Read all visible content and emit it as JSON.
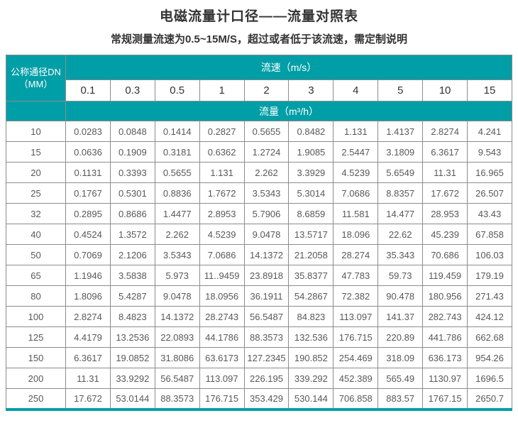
{
  "header": {
    "title": "电磁流量计口径——流量对照表",
    "subtitle": "常规测量流速为0.5~15M/S，超过或者低于该流速，需定制说明"
  },
  "table": {
    "accent_color": "#009ea6",
    "corner_label_line1": "公称通径DN",
    "corner_label_line2": "（MM）",
    "velocity_header": "流速（m/s）",
    "flow_header": "流量（m³/h）",
    "speed_columns": [
      "0.1",
      "0.3",
      "0.5",
      "1",
      "2",
      "3",
      "4",
      "5",
      "10",
      "15"
    ],
    "rows": [
      {
        "dn": "10",
        "values": [
          "0.0283",
          "0.0848",
          "0.1414",
          "0.2827",
          "0.5655",
          "0.8482",
          "1.131",
          "1.4137",
          "2.8274",
          "4.241"
        ]
      },
      {
        "dn": "15",
        "values": [
          "0.0636",
          "0.1909",
          "0.3181",
          "0.6362",
          "1.2724",
          "1.9085",
          "2.5447",
          "3.1809",
          "6.3617",
          "9.543"
        ]
      },
      {
        "dn": "20",
        "values": [
          "0.1131",
          "0.3393",
          "0.5655",
          "1.131",
          "2.262",
          "3.3929",
          "4.5239",
          "5.6549",
          "11.31",
          "16.965"
        ]
      },
      {
        "dn": "25",
        "values": [
          "0.1767",
          "0.5301",
          "0.8836",
          "1.7672",
          "3.5343",
          "5.3014",
          "7.0686",
          "8.8357",
          "17.672",
          "26.507"
        ]
      },
      {
        "dn": "32",
        "values": [
          "0.2895",
          "0.8686",
          "1.4477",
          "2.8953",
          "5.7906",
          "8.6859",
          "11.581",
          "14.477",
          "28.953",
          "43.43"
        ]
      },
      {
        "dn": "40",
        "values": [
          "0.4524",
          "1.3572",
          "2.262",
          "4.5239",
          "9.0478",
          "13.5717",
          "18.096",
          "22.62",
          "45.239",
          "67.858"
        ]
      },
      {
        "dn": "50",
        "values": [
          "0.7069",
          "2.1206",
          "3.5343",
          "7.0686",
          "14.1372",
          "21.2058",
          "28.274",
          "35.343",
          "70.686",
          "106.03"
        ]
      },
      {
        "dn": "65",
        "values": [
          "1.1946",
          "3.5838",
          "5.973",
          "11..9459",
          "23.8918",
          "35.8377",
          "47.783",
          "59.73",
          "119.459",
          "179.19"
        ]
      },
      {
        "dn": "80",
        "values": [
          "1.8096",
          "5.4287",
          "9.0478",
          "18.0956",
          "36.1911",
          "54.2867",
          "72.382",
          "90.478",
          "180.956",
          "271.43"
        ]
      },
      {
        "dn": "100",
        "values": [
          "2.8274",
          "8.4823",
          "14.1372",
          "28.2743",
          "56.5487",
          "84.823",
          "113.097",
          "141.37",
          "282.743",
          "424.12"
        ]
      },
      {
        "dn": "125",
        "values": [
          "4.4179",
          "13.2536",
          "22.0893",
          "44.1786",
          "88.3573",
          "132.536",
          "176.715",
          "220.89",
          "441.786",
          "662.68"
        ]
      },
      {
        "dn": "150",
        "values": [
          "6.3617",
          "19.0852",
          "31.8086",
          "63.6173",
          "127.2345",
          "190.852",
          "254.469",
          "318.09",
          "636.173",
          "954.26"
        ]
      },
      {
        "dn": "200",
        "values": [
          "11.31",
          "33.9292",
          "56.5487",
          "113.097",
          "226.195",
          "339.292",
          "452.389",
          "565.49",
          "1130.97",
          "1696.5"
        ]
      },
      {
        "dn": "250",
        "values": [
          "17.672",
          "53.0144",
          "88.3573",
          "176.715",
          "353.429",
          "530.144",
          "706.858",
          "883.57",
          "1767.15",
          "2650.7"
        ]
      }
    ]
  }
}
